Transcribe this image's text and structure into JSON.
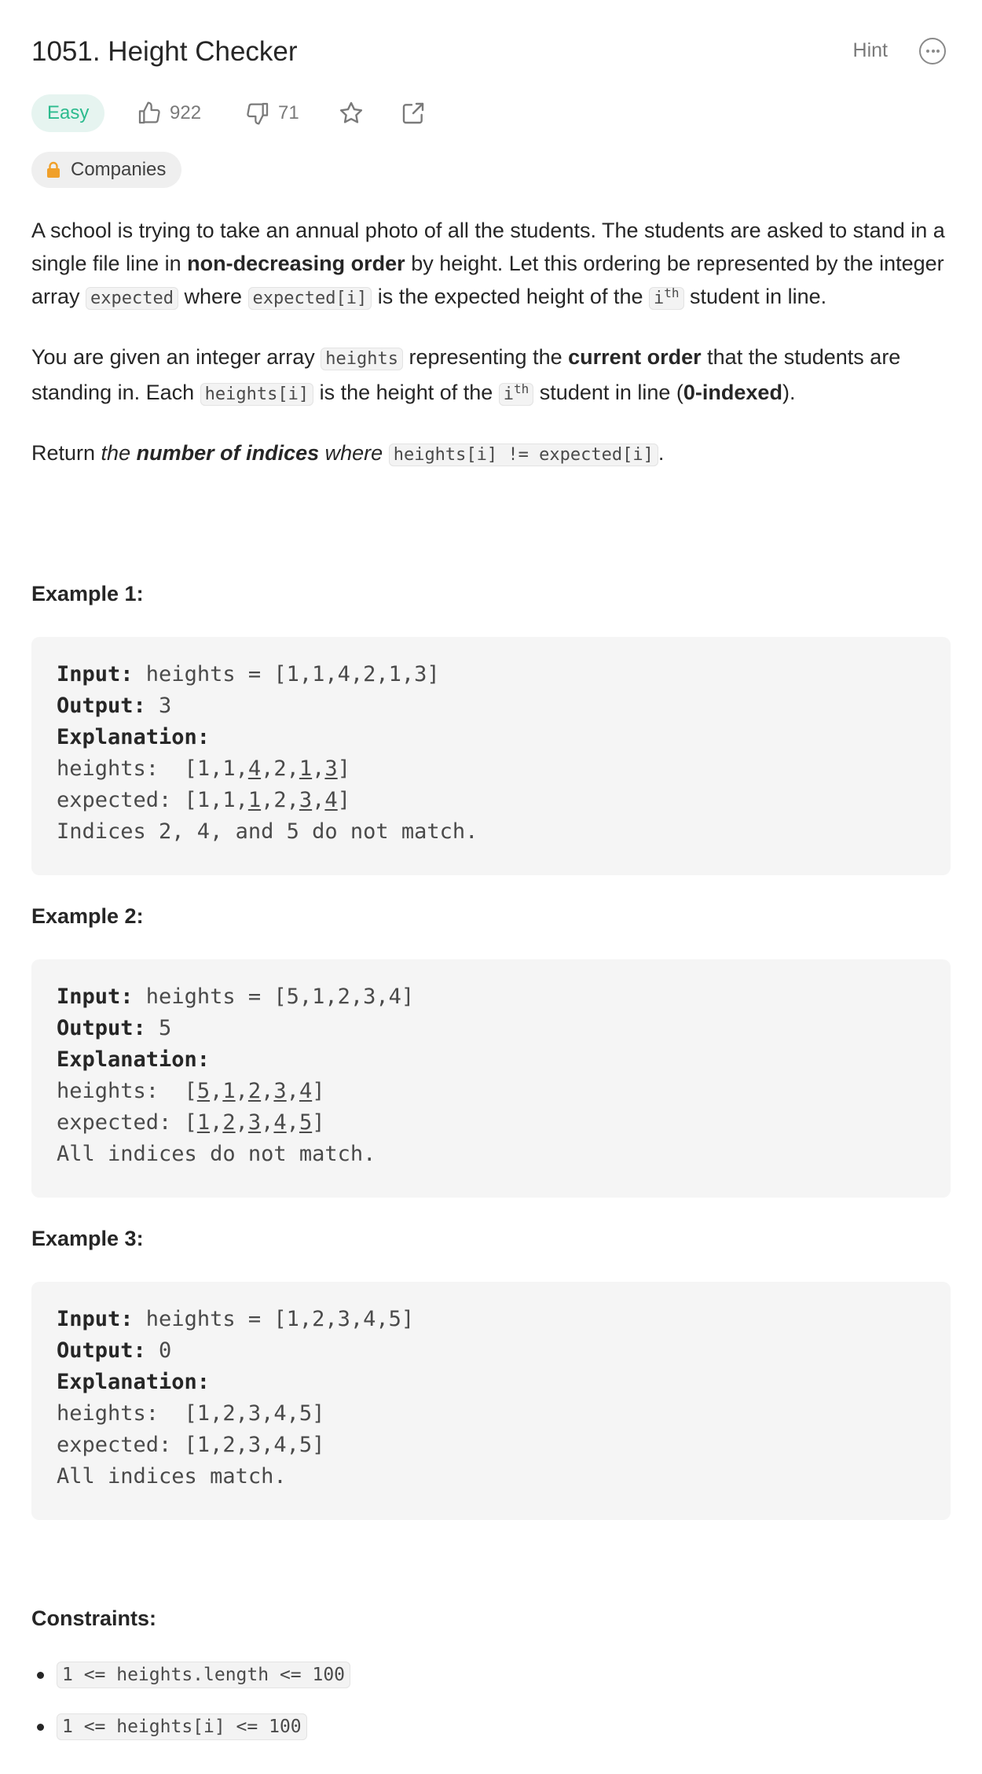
{
  "problem": {
    "title": "1051. Height Checker",
    "hint_label": "Hint",
    "difficulty": "Easy",
    "likes": "922",
    "dislikes": "71",
    "companies_label": "Companies"
  },
  "description": {
    "p1": {
      "t1": "A school is trying to take an annual photo of all the students. The students are asked to stand in a single file line in ",
      "b1": "non-decreasing order",
      "t2": " by height. Let this ordering be represented by the integer array ",
      "c1": "expected",
      "t3": " where ",
      "c2": "expected[i]",
      "t4": " is the expected height of the ",
      "c3": "i",
      "c3sup": "th",
      "t5": " student in line."
    },
    "p2": {
      "t1": "You are given an integer array ",
      "c1": "heights",
      "t2": " representing the ",
      "b1": "current order",
      "t3": " that the students are standing in. Each ",
      "c2": "heights[i]",
      "t4": " is the height of the ",
      "c3": "i",
      "c3sup": "th",
      "t5": " student in line (",
      "b2": "0-indexed",
      "t6": ")."
    },
    "p3": {
      "t1": "Return ",
      "i1": "the ",
      "bi1": "number of indices",
      "i2": " where",
      "t2": " ",
      "c1": "heights[i] != expected[i]",
      "t3": "."
    }
  },
  "examples": [
    {
      "heading": "Example 1:",
      "input_label": "Input:",
      "input": " heights = [1,1,4,2,1,3]",
      "output_label": "Output:",
      "output": " 3",
      "explanation_label": "Explanation:",
      "line4": "heights:  [1,1,4,2,1,3]",
      "line5": "expected: [1,1,1,2,3,4]",
      "line6": "Indices 2, 4, and 5 do not match."
    },
    {
      "heading": "Example 2:",
      "input_label": "Input:",
      "input": " heights = [5,1,2,3,4]",
      "output_label": "Output:",
      "output": " 5",
      "explanation_label": "Explanation:",
      "line4": "heights:  [5,1,2,3,4]",
      "line5": "expected: [1,2,3,4,5]",
      "line6": "All indices do not match."
    },
    {
      "heading": "Example 3:",
      "input_label": "Input:",
      "input": " heights = [1,2,3,4,5]",
      "output_label": "Output:",
      "output": " 0",
      "explanation_label": "Explanation:",
      "line4": "heights:  [1,2,3,4,5]",
      "line5": "expected: [1,2,3,4,5]",
      "line6": "All indices match."
    }
  ],
  "constraints": {
    "heading": "Constraints:",
    "items": [
      "1 <= heights.length <= 100",
      "1 <= heights[i] <= 100"
    ]
  },
  "colors": {
    "easy_text": "#2cbb8e",
    "easy_bg": "#e6f4f0",
    "lock": "#f0a02a"
  },
  "icons": {
    "like": "thumbs-up-icon",
    "dislike": "thumbs-down-icon",
    "star": "star-icon",
    "share": "share-icon",
    "more": "more-icon",
    "lock": "lock-icon"
  }
}
